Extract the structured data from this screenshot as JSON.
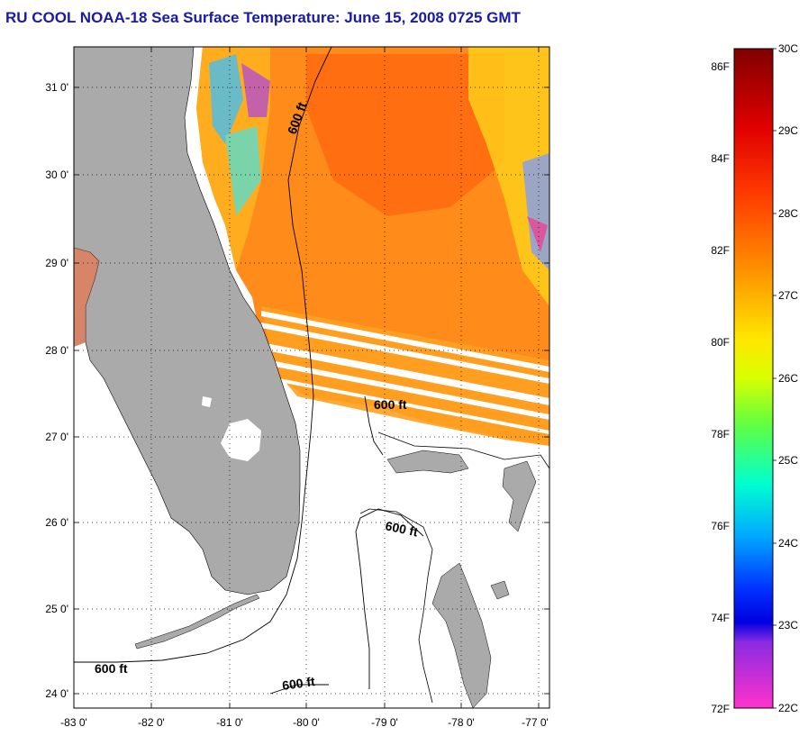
{
  "title": "RU COOL  NOAA-18  Sea Surface Temperature:  June 15, 2008 0725 GMT",
  "map": {
    "lat_labels": [
      "31 0'",
      "30 0'",
      "29 0'",
      "28 0'",
      "27 0'",
      "26 0'",
      "25 0'",
      "24 0'"
    ],
    "lon_labels": [
      "-83 0'",
      "-82 0'",
      "-81 0'",
      "-80 0'",
      "-79 0'",
      "-78 0'",
      "-77 0'"
    ],
    "isobath_labels": [
      "600 ft",
      "600 ft",
      "600 ft",
      "600 ft",
      "600 ft"
    ],
    "colors": {
      "land": "#aaaaaa",
      "warm": "#ff7a1a",
      "warm_light": "#ffaa22",
      "yellow": "#ffe000",
      "cold": "#2aa0ff",
      "frame": "#000000"
    }
  },
  "colorbar": {
    "f_labels": [
      "86F",
      "84F",
      "82F",
      "80F",
      "78F",
      "76F",
      "74F",
      "72F"
    ],
    "c_labels": [
      "30C",
      "29C",
      "28C",
      "27C",
      "26C",
      "25C",
      "24C",
      "23C",
      "22C"
    ]
  }
}
